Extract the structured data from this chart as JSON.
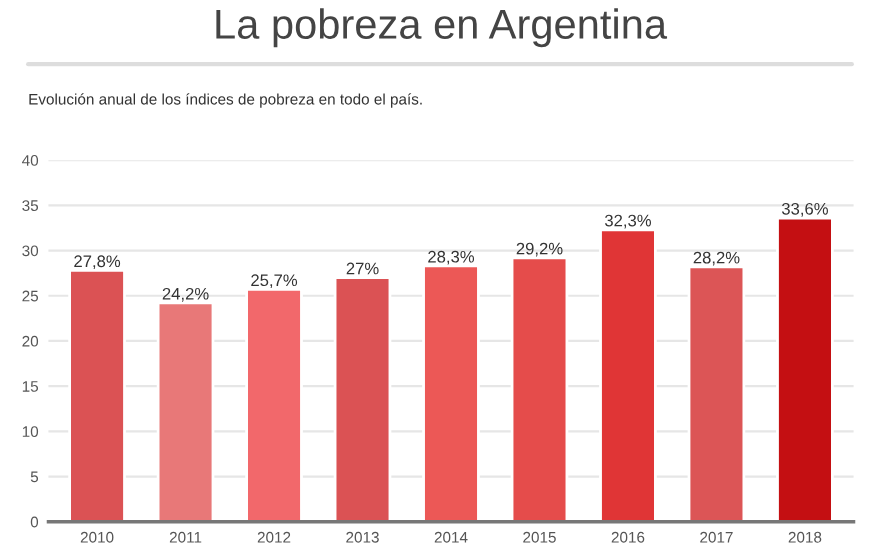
{
  "chart_data": {
    "type": "bar",
    "title": "La pobreza en Argentina",
    "subtitle": "Evolución anual de los índices de pobreza en todo el país.",
    "categories": [
      "2010",
      "2011",
      "2012",
      "2013",
      "2014",
      "2015",
      "2016",
      "2017",
      "2018"
    ],
    "values": [
      27.8,
      24.2,
      25.7,
      27,
      28.3,
      29.2,
      32.3,
      28.2,
      33.6
    ],
    "colors": [
      "#db5254",
      "#e87878",
      "#f2686b",
      "#db5254",
      "#ec5856",
      "#e54c4b",
      "#e03536",
      "#dc5556",
      "#c40f12"
    ],
    "value_labels": [
      "27,8%",
      "24,2%",
      "25,7%",
      "27%",
      "28,3%",
      "29,2%",
      "32,3%",
      "28,2%",
      "33,6%"
    ],
    "ylim": [
      0,
      40
    ],
    "yticks": [
      0,
      5,
      10,
      15,
      20,
      25,
      30,
      35,
      40
    ],
    "grid": "y",
    "legend": false
  }
}
